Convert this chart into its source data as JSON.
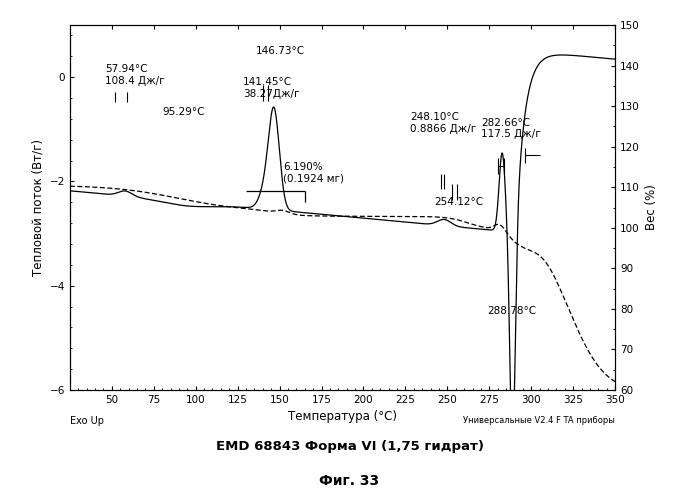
{
  "title": "EMD 68843 Форма VI (1,75 гидрат)",
  "subtitle": "Фиг. 33",
  "xlabel": "Температура (°C)",
  "ylabel_left": "Тепловой поток (Вт/г)",
  "ylabel_right": "Вес (%)",
  "xlim": [
    25,
    350
  ],
  "ylim_left": [
    -6,
    1
  ],
  "ylim_right": [
    60,
    150
  ],
  "xticks": [
    50,
    75,
    100,
    125,
    150,
    175,
    200,
    225,
    250,
    275,
    300,
    325,
    350
  ],
  "yticks_left": [
    -6,
    -4,
    -2,
    0
  ],
  "yticks_right": [
    60,
    70,
    80,
    90,
    100,
    110,
    120,
    130,
    140,
    150
  ],
  "bottom_left_label": "Exo Up",
  "bottom_right_label": "Универсальные V2.4 F TA приборы",
  "background_color": "#ffffff",
  "line_color_dsc": "#000000",
  "line_color_tga": "#000000"
}
